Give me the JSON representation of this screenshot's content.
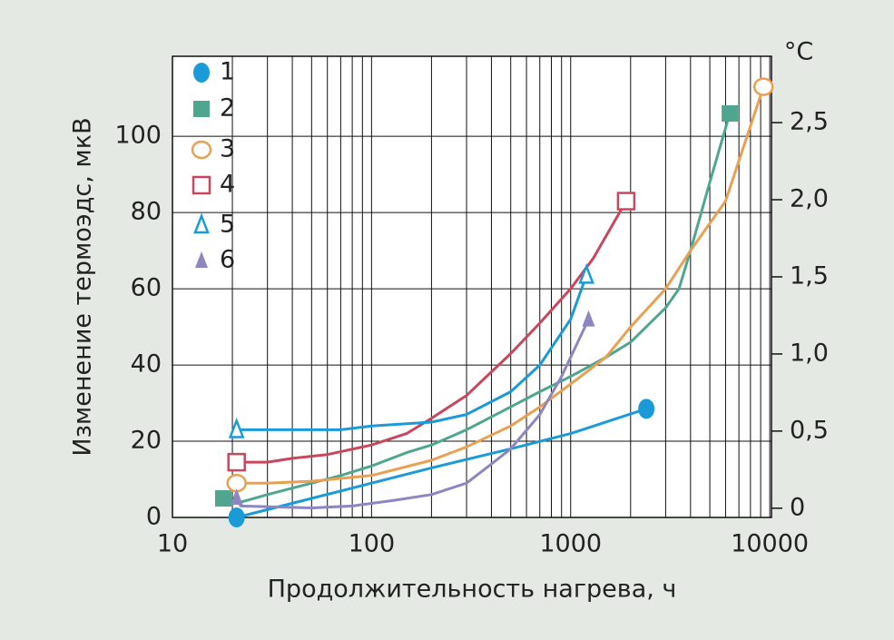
{
  "chart_data": {
    "type": "line",
    "xlabel": "Продолжительность нагрева, ч",
    "ylabel": "Изменение термоэдс, мкВ",
    "y2label": "°C",
    "xscale": "log",
    "xlim": [
      10,
      10200
    ],
    "xticks": [
      10,
      100,
      1000,
      10000
    ],
    "ylim": [
      0,
      121
    ],
    "yticks": [
      0,
      20,
      40,
      60,
      80,
      100
    ],
    "y2lim": [
      -0.06,
      2.93
    ],
    "y2ticks": [
      0,
      {
        "value": 0.5,
        "label": "0,5"
      },
      {
        "value": 1.0,
        "label": "1,0"
      },
      {
        "value": 1.5,
        "label": "1,5"
      },
      {
        "value": 2.0,
        "label": "2,0"
      },
      {
        "value": 2.5,
        "label": "2,5"
      }
    ],
    "grid": true,
    "series": [
      {
        "name": "1",
        "color": "#1b9ad8",
        "marker": "circle",
        "x": [
          21,
          50,
          100,
          200,
          500,
          1000,
          2400
        ],
        "y": [
          0,
          5,
          9,
          13,
          18,
          22,
          28.5
        ]
      },
      {
        "name": "2",
        "color": "#4ea68f",
        "marker": "square",
        "x": [
          18,
          22,
          30,
          50,
          70,
          100,
          150,
          200,
          300,
          500,
          700,
          1000,
          1500,
          2000,
          3000,
          3500,
          4000,
          5000,
          6300
        ],
        "y": [
          5,
          4,
          6,
          9,
          11,
          13.5,
          17,
          19,
          23,
          29,
          33,
          37,
          42,
          46,
          55,
          60,
          70,
          88,
          106
        ]
      },
      {
        "name": "3",
        "color": "#e9a052",
        "marker": "open-circle",
        "x": [
          21,
          30,
          50,
          100,
          200,
          300,
          500,
          700,
          1000,
          1500,
          2000,
          3000,
          4000,
          6000,
          9300
        ],
        "y": [
          9,
          9,
          9.5,
          11,
          15,
          18.5,
          24,
          29,
          35,
          42,
          50,
          60,
          70,
          83,
          113
        ]
      },
      {
        "name": "4",
        "color": "#c9475c",
        "marker": "open-square",
        "x": [
          21,
          30,
          40,
          60,
          100,
          150,
          200,
          300,
          500,
          700,
          1000,
          1300,
          1900
        ],
        "y": [
          14.5,
          14.5,
          15.5,
          16.5,
          19,
          22,
          26,
          32,
          43,
          51,
          60,
          68,
          83
        ]
      },
      {
        "name": "5",
        "color": "#1b9ad8",
        "marker": "open-triangle",
        "x": [
          21,
          70,
          100,
          200,
          300,
          500,
          700,
          1000,
          1200
        ],
        "y": [
          23,
          23,
          24,
          25,
          27,
          33,
          40,
          52,
          63.5
        ]
      },
      {
        "name": "6",
        "color": "#8c86c1",
        "marker": "triangle",
        "x": [
          21,
          22,
          50,
          80,
          130,
          200,
          300,
          400,
          500,
          700,
          900,
          1230
        ],
        "y": [
          5.2,
          3,
          2.5,
          3,
          4.5,
          6,
          9,
          14,
          18,
          27,
          37,
          52
        ]
      }
    ]
  }
}
